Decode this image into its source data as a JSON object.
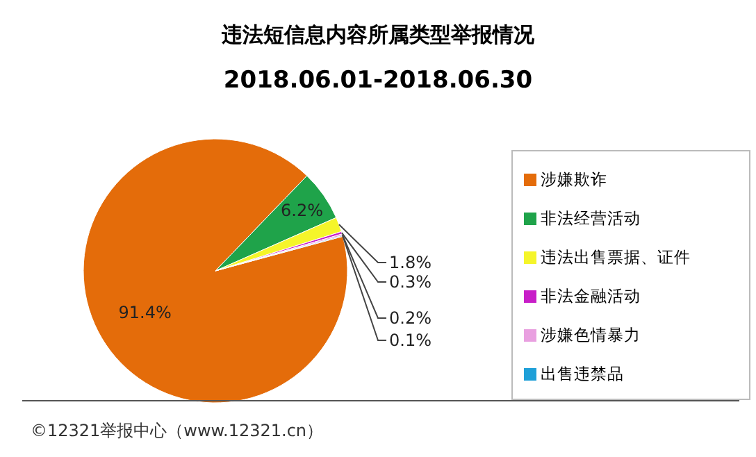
{
  "chart_data": {
    "type": "pie",
    "title": "违法短信息内容所属类型举报情况",
    "subtitle": "2018.06.01-2018.06.30",
    "categories": [
      "涉嫌欺诈",
      "非法经营活动",
      "违法出售票据、证件",
      "非法金融活动",
      "涉嫌色情暴力",
      "出售违禁品"
    ],
    "values": [
      91.4,
      6.2,
      1.8,
      0.3,
      0.2,
      0.1
    ],
    "value_labels": [
      "91.4%",
      "6.2%",
      "1.8%",
      "0.3%",
      "0.2%",
      "0.1%"
    ],
    "colors": [
      "#e46c0a",
      "#1fa34a",
      "#f5f52a",
      "#c81ec8",
      "#e9a0e0",
      "#1fa0d8"
    ],
    "legend": "right",
    "annotations": [
      "©12321举报中心（www.12321.cn）"
    ]
  }
}
